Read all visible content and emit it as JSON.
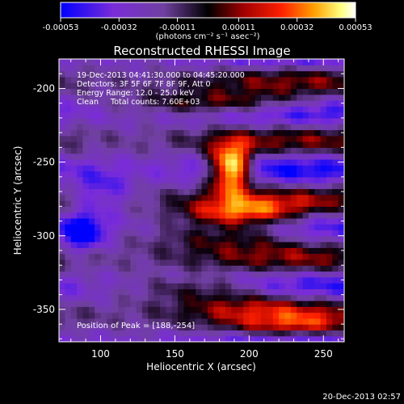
{
  "chart_data": {
    "type": "heatmap",
    "title": "Reconstructed RHESSI Image",
    "xlabel": "Heliocentric X (arcsec)",
    "ylabel": "Heliocentric Y (arcsec)",
    "xlim": [
      72,
      264
    ],
    "ylim": [
      -372,
      -180
    ],
    "x_ticks": [
      100,
      150,
      200,
      250
    ],
    "y_ticks": [
      -200,
      -250,
      -300,
      -350
    ],
    "colorbar": {
      "ticks": [
        "-0.00053",
        "-0.00032",
        "-0.00011",
        "0.00011",
        "0.00032",
        "0.00053"
      ],
      "tick_values": [
        -0.00053,
        -0.00032,
        -0.00011,
        0.00011,
        0.00032,
        0.00053
      ],
      "range": [
        -0.00053,
        0.00053
      ],
      "unit_label": "(photons cm⁻² s⁻¹ asec⁻²)"
    },
    "annotations": [
      "19-Dec-2013 04:41:30.000 to 04:45:20.000",
      "Detectors: 3F 5F 6F 7F 8F 9F, Att 0",
      "Energy Range: 12.0 - 25.0 keV",
      "Clean     Total counts: 7.60E+03"
    ],
    "peak_label": "Position of Peak = [188,-254]",
    "peak": [
      188,
      -254
    ],
    "timestamp": "20-Dec-2013 02:57",
    "grid": false,
    "colormap": [
      "#0000ff",
      "#7a2cd8",
      "#7040a0",
      "#000000",
      "#a00000",
      "#ff2000",
      "#ffa000",
      "#ffff80",
      "#ffffff"
    ]
  }
}
